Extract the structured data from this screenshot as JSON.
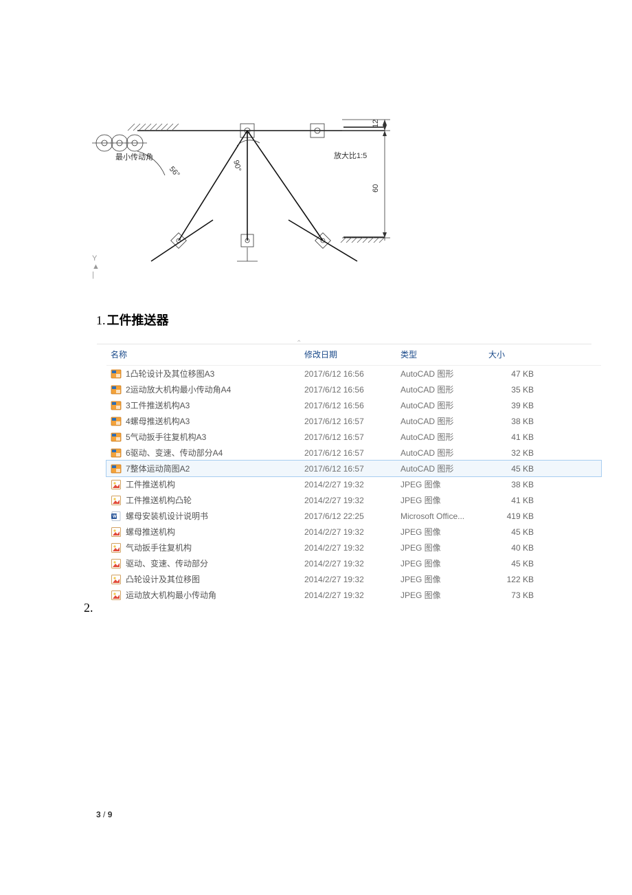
{
  "section_heading": {
    "num": "1.",
    "text": "工件推送器"
  },
  "list_tail_num": "2.",
  "axis_marker": "Y",
  "diagram": {
    "label_min_angle": "最小传动角",
    "angle_value": "56°",
    "angle90": "90°",
    "scale_label": "放大比1:5",
    "dim_top": "12",
    "dim_bottom": "60"
  },
  "table": {
    "headers": {
      "name": "名称",
      "date": "修改日期",
      "type": "类型",
      "size": "大小"
    },
    "header_color": "#1a4a8a",
    "row_text_color": "#555555",
    "rows": [
      {
        "icon": "dwg",
        "name": "1凸轮设计及其位移图A3",
        "date": "2017/6/12 16:56",
        "type": "AutoCAD 图形",
        "size": "47 KB"
      },
      {
        "icon": "dwg",
        "name": "2运动放大机构最小传动角A4",
        "date": "2017/6/12 16:56",
        "type": "AutoCAD 图形",
        "size": "35 KB"
      },
      {
        "icon": "dwg",
        "name": "3工件推送机构A3",
        "date": "2017/6/12 16:56",
        "type": "AutoCAD 图形",
        "size": "39 KB"
      },
      {
        "icon": "dwg",
        "name": "4螺母推送机构A3",
        "date": "2017/6/12 16:57",
        "type": "AutoCAD 图形",
        "size": "38 KB"
      },
      {
        "icon": "dwg",
        "name": "5气动扳手往复机构A3",
        "date": "2017/6/12 16:57",
        "type": "AutoCAD 图形",
        "size": "41 KB"
      },
      {
        "icon": "dwg",
        "name": "6驱动、变速、传动部分A4",
        "date": "2017/6/12 16:57",
        "type": "AutoCAD 图形",
        "size": "32 KB"
      },
      {
        "icon": "dwg",
        "name": "7整体运动简图A2",
        "date": "2017/6/12 16:57",
        "type": "AutoCAD 图形",
        "size": "45 KB",
        "selected": true
      },
      {
        "icon": "jpg",
        "name": "工件推送机构",
        "date": "2014/2/27 19:32",
        "type": "JPEG 图像",
        "size": "38 KB"
      },
      {
        "icon": "jpg",
        "name": "工件推送机构凸轮",
        "date": "2014/2/27 19:32",
        "type": "JPEG 图像",
        "size": "41 KB"
      },
      {
        "icon": "doc",
        "name": "螺母安装机设计说明书",
        "date": "2017/6/12 22:25",
        "type": "Microsoft Office...",
        "size": "419 KB"
      },
      {
        "icon": "jpg",
        "name": "螺母推送机构",
        "date": "2014/2/27 19:32",
        "type": "JPEG 图像",
        "size": "45 KB"
      },
      {
        "icon": "jpg",
        "name": "气动扳手往复机构",
        "date": "2014/2/27 19:32",
        "type": "JPEG 图像",
        "size": "40 KB"
      },
      {
        "icon": "jpg",
        "name": "驱动、变速、传动部分",
        "date": "2014/2/27 19:32",
        "type": "JPEG 图像",
        "size": "45 KB"
      },
      {
        "icon": "jpg",
        "name": "凸轮设计及其位移图",
        "date": "2014/2/27 19:32",
        "type": "JPEG 图像",
        "size": "122 KB"
      },
      {
        "icon": "jpg",
        "name": "运动放大机构最小传动角",
        "date": "2014/2/27 19:32",
        "type": "JPEG 图像",
        "size": "73 KB"
      }
    ]
  },
  "icons": {
    "dwg": {
      "bg": "#f3a23a",
      "accent": "#2e6fb6"
    },
    "jpg": {
      "bg": "#ffffff",
      "accent": "#e24b3a",
      "border": "#d2a060"
    },
    "doc": {
      "bg": "#ffffff",
      "accent": "#2b579a",
      "border": "#b8c4d4"
    }
  },
  "page_footer": {
    "current": "3",
    "sep": " / ",
    "total": "9"
  }
}
